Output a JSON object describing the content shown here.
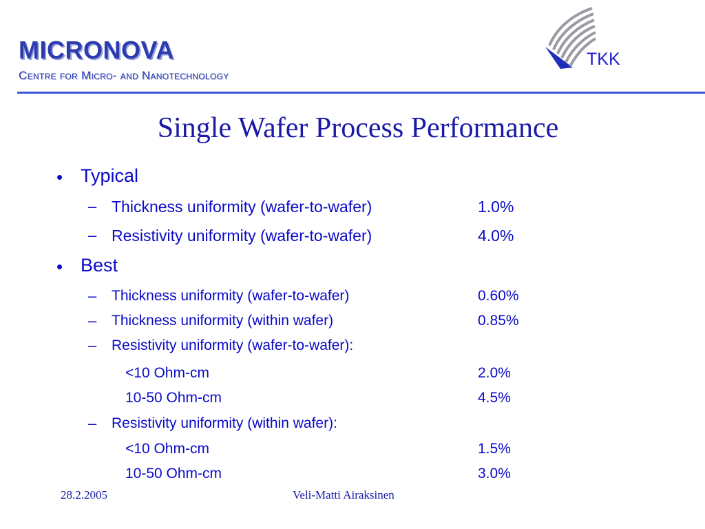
{
  "header": {
    "logo_main": "MICRONOVA",
    "logo_sub": "Centre for Micro- and Nanotechnology",
    "tkk_label": "TKK",
    "accent_color": "#3a56d8",
    "text_color": "#0a0ac8"
  },
  "slide": {
    "title": "Single Wafer Process Performance",
    "sections": [
      {
        "label": "Typical",
        "items": [
          {
            "label": "Thickness uniformity (wafer-to-wafer)",
            "value": "1.0%"
          },
          {
            "label": "Resistivity uniformity (wafer-to-wafer)",
            "value": "4.0%"
          }
        ]
      },
      {
        "label": "Best",
        "items": [
          {
            "label": "Thickness uniformity (wafer-to-wafer)",
            "value": "0.60%"
          },
          {
            "label": "Thickness uniformity (within wafer)",
            "value": "0.85%"
          },
          {
            "label": "Resistivity uniformity  (wafer-to-wafer):",
            "sub": [
              {
                "label": "<10 Ohm-cm",
                "value": "2.0%"
              },
              {
                "label": "10-50 Ohm-cm",
                "value": "4.5%"
              }
            ]
          },
          {
            "label": "Resistivity uniformity  (within wafer):",
            "sub": [
              {
                "label": "<10 Ohm-cm",
                "value": "1.5%"
              },
              {
                "label": "10-50 Ohm-cm",
                "value": "3.0%"
              }
            ]
          }
        ]
      }
    ]
  },
  "footer": {
    "date": "28.2.2005",
    "author": "Veli-Matti Airaksinen"
  }
}
